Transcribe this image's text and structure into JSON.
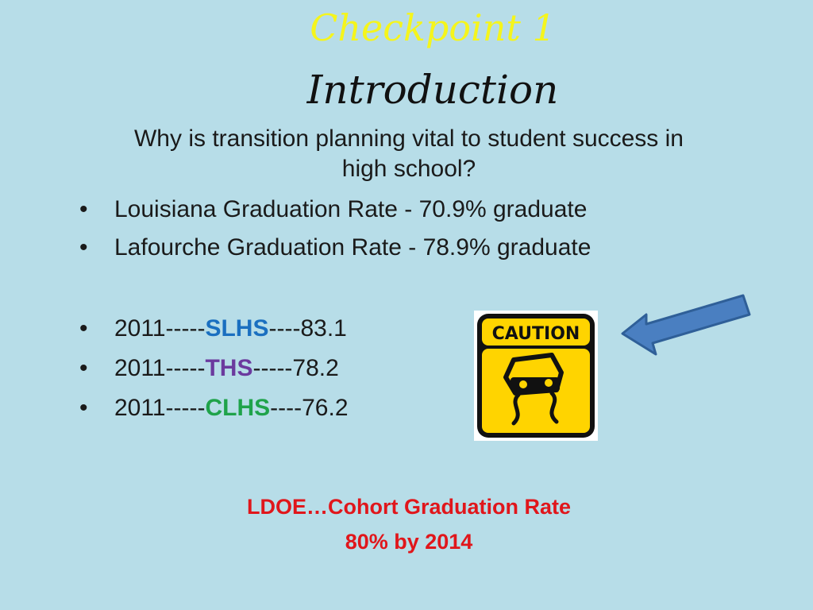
{
  "slide": {
    "title_line1": "Checkpoint 1",
    "title_line2": "Introduction",
    "question": "Why is transition planning vital to student success in high school?",
    "bullets": [
      {
        "text": "Louisiana Graduation Rate  - 70.9% graduate"
      },
      {
        "text": "Lafourche Graduation Rate - 78.9% graduate"
      }
    ],
    "schools": [
      {
        "year": "2011",
        "sep1": "-----",
        "name": "SLHS",
        "sep2": "----",
        "value": "83.1",
        "color": "#1a6fc0"
      },
      {
        "year": "2011",
        "sep1": "-----",
        "name": "THS",
        "sep2": "-----",
        "value": "78.2",
        "color": "#6b3a9e"
      },
      {
        "year": "2011",
        "sep1": "-----",
        "name": "CLHS",
        "sep2": "----",
        "value": "76.2",
        "color": "#1fa34a"
      }
    ],
    "bullet_symbol": "•",
    "caution_sign": {
      "label": "CAUTION",
      "icon": "slippery-car-icon"
    },
    "arrow": {
      "icon": "arrow-left-icon",
      "color": "#4a7fc1"
    },
    "footer_line1": "LDOE…Cohort Graduation Rate",
    "footer_line2": "80% by 2014",
    "colors": {
      "background": "#b7dde8",
      "title_yellow": "#f5f51c",
      "footer_red": "#e0161b"
    }
  }
}
